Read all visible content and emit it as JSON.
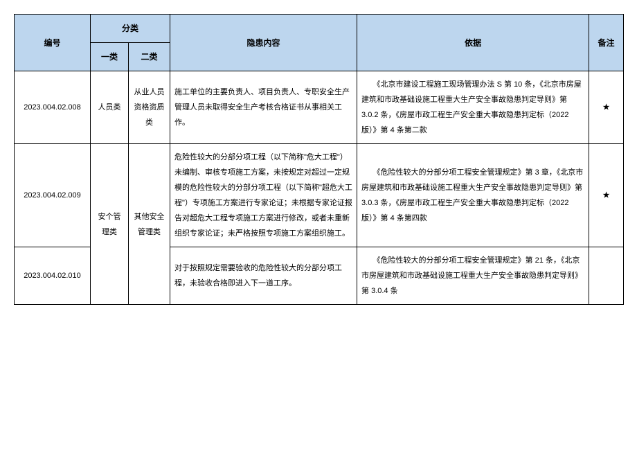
{
  "header": {
    "id": "编号",
    "category": "分类",
    "cat1": "一类",
    "cat2": "二类",
    "content": "隐患内容",
    "basis": "依据",
    "note": "备注"
  },
  "rows": [
    {
      "id": "2023.004.02.008",
      "cat1": "人员类",
      "cat2": "从业人员资格资质类",
      "content": "施工单位的主要负责人、项目负责人、专职安全生产管理人员未取得安全生产考核合格证书从事相关工作。",
      "basis": "《北京市建设工程施工现场管理办法 S 第 10 条，《北京市房屋建筑和市政基础设施工程重大生产安全事故隐患判定导则》第 3.0.2 条，《房屋市政工程生产安全重大事故隐患判定标（2022 版）》第 4 条第二款",
      "note": "★"
    },
    {
      "id": "2023.004.02.009",
      "cat1": "安个管理类",
      "cat2": "其他安全管理类",
      "content": "危险性较大的分部分项工程（以下简称\"危大工程\"）未编制、审核专项施工方案，未按规定对超过一定规模的危险性较大的分部分项工程（以下简称\"超危大工程\"）专项施工方案进行专家论证；未根据专家论证报告对超危大工程专项施工方案进行修改，或者未重新组织专家论证；未严格按照专项施工方案组织施工。",
      "basis": "《危险性较大的分部分项工程安全管理规定》第 3 章，《北京市房屋建筑和市政基础设施工程重大生产安全事故隐患判定导则》第 3.0.3 条，《房屋市政工程生产安全重大事故隐患判定标（2022 版）》第 4 条第四款",
      "note": "★"
    },
    {
      "id": "2023.004.02.010",
      "cat1": "",
      "cat2": "",
      "content": "对于按照规定需要验收的危险性较大的分部分项工程，未验收合格即进入下一道工序。",
      "basis": "《危险性较大的分部分项工程安全管理规定》第 21 条，《北京市房屋建筑和市政基础设施工程重大生产安全事故隐患判定导则》第 3.0.4 条",
      "note": ""
    }
  ],
  "fontsize": {
    "header": 12,
    "body": 11
  },
  "colors": {
    "header_bg": "#bdd6ee",
    "border": "#000000",
    "page_bg": "#ffffff"
  }
}
